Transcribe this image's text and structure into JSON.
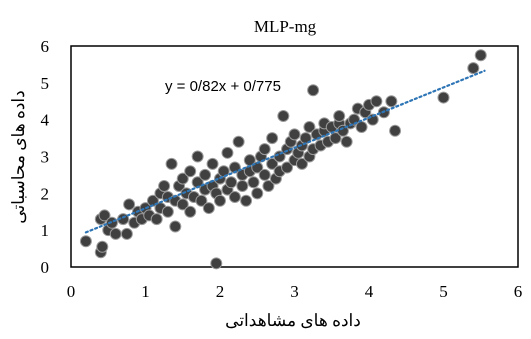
{
  "chart_data": {
    "type": "scatter",
    "title": "MLP-mg",
    "xlabel": "داده های مشاهداتی",
    "ylabel": "داده های محاسباتی",
    "xlim": [
      0,
      6
    ],
    "ylim": [
      0,
      6
    ],
    "x_ticks": [
      "0",
      "1",
      "2",
      "3",
      "4",
      "5",
      "6"
    ],
    "y_ticks": [
      "0",
      "1",
      "2",
      "3",
      "4",
      "5",
      "6"
    ],
    "grid": false,
    "legend": "none",
    "trendline": {
      "label": "y = 0/82x + 0/775",
      "slope": 0.82,
      "intercept": 0.775,
      "x_range": [
        0.2,
        5.55
      ],
      "style": "dotted",
      "color": "#2E75B6"
    },
    "marker_color": "#404040",
    "marker_edge": "#9a9a9a",
    "points": [
      [
        0.2,
        0.7
      ],
      [
        0.4,
        0.4
      ],
      [
        0.42,
        0.55
      ],
      [
        0.4,
        1.3
      ],
      [
        0.45,
        1.4
      ],
      [
        0.5,
        1.0
      ],
      [
        0.55,
        1.2
      ],
      [
        0.6,
        0.9
      ],
      [
        0.7,
        1.3
      ],
      [
        0.75,
        0.9
      ],
      [
        0.78,
        1.7
      ],
      [
        0.85,
        1.2
      ],
      [
        0.9,
        1.5
      ],
      [
        0.95,
        1.3
      ],
      [
        1.0,
        1.6
      ],
      [
        1.05,
        1.4
      ],
      [
        1.1,
        1.8
      ],
      [
        1.15,
        1.3
      ],
      [
        1.2,
        2.0
      ],
      [
        1.2,
        1.6
      ],
      [
        1.25,
        2.2
      ],
      [
        1.3,
        1.5
      ],
      [
        1.3,
        1.9
      ],
      [
        1.35,
        2.8
      ],
      [
        1.4,
        1.8
      ],
      [
        1.4,
        1.1
      ],
      [
        1.45,
        2.2
      ],
      [
        1.5,
        1.7
      ],
      [
        1.5,
        2.4
      ],
      [
        1.55,
        2.0
      ],
      [
        1.6,
        1.5
      ],
      [
        1.6,
        2.6
      ],
      [
        1.65,
        1.9
      ],
      [
        1.7,
        2.3
      ],
      [
        1.7,
        3.0
      ],
      [
        1.75,
        1.8
      ],
      [
        1.8,
        2.1
      ],
      [
        1.8,
        2.5
      ],
      [
        1.85,
        1.6
      ],
      [
        1.9,
        2.2
      ],
      [
        1.9,
        2.8
      ],
      [
        1.95,
        2.0
      ],
      [
        1.95,
        0.1
      ],
      [
        2.0,
        2.4
      ],
      [
        2.0,
        1.8
      ],
      [
        2.05,
        2.6
      ],
      [
        2.1,
        2.1
      ],
      [
        2.1,
        3.1
      ],
      [
        2.15,
        2.3
      ],
      [
        2.2,
        1.9
      ],
      [
        2.2,
        2.7
      ],
      [
        2.25,
        3.4
      ],
      [
        2.3,
        2.2
      ],
      [
        2.3,
        2.5
      ],
      [
        2.35,
        1.8
      ],
      [
        2.4,
        2.6
      ],
      [
        2.4,
        2.9
      ],
      [
        2.45,
        2.3
      ],
      [
        2.5,
        2.7
      ],
      [
        2.5,
        2.0
      ],
      [
        2.55,
        3.0
      ],
      [
        2.6,
        2.5
      ],
      [
        2.6,
        3.2
      ],
      [
        2.65,
        2.2
      ],
      [
        2.7,
        2.8
      ],
      [
        2.7,
        3.5
      ],
      [
        2.75,
        2.4
      ],
      [
        2.8,
        3.0
      ],
      [
        2.8,
        2.6
      ],
      [
        2.85,
        4.1
      ],
      [
        2.9,
        3.2
      ],
      [
        2.9,
        2.7
      ],
      [
        2.95,
        3.4
      ],
      [
        3.0,
        2.9
      ],
      [
        3.0,
        3.6
      ],
      [
        3.05,
        3.1
      ],
      [
        3.1,
        3.3
      ],
      [
        3.1,
        2.8
      ],
      [
        3.15,
        3.5
      ],
      [
        3.2,
        3.0
      ],
      [
        3.2,
        3.8
      ],
      [
        3.25,
        4.8
      ],
      [
        3.25,
        3.2
      ],
      [
        3.3,
        3.6
      ],
      [
        3.35,
        3.3
      ],
      [
        3.4,
        3.7
      ],
      [
        3.4,
        3.9
      ],
      [
        3.45,
        3.4
      ],
      [
        3.5,
        3.8
      ],
      [
        3.55,
        3.5
      ],
      [
        3.6,
        3.9
      ],
      [
        3.6,
        4.1
      ],
      [
        3.65,
        3.7
      ],
      [
        3.7,
        3.4
      ],
      [
        3.75,
        3.9
      ],
      [
        3.8,
        4.0
      ],
      [
        3.85,
        4.3
      ],
      [
        3.9,
        3.8
      ],
      [
        3.95,
        4.2
      ],
      [
        4.0,
        4.4
      ],
      [
        4.05,
        4.0
      ],
      [
        4.1,
        4.5
      ],
      [
        4.2,
        4.2
      ],
      [
        4.3,
        4.5
      ],
      [
        4.35,
        3.7
      ],
      [
        5.0,
        4.6
      ],
      [
        5.4,
        5.4
      ],
      [
        5.5,
        5.75
      ]
    ]
  }
}
